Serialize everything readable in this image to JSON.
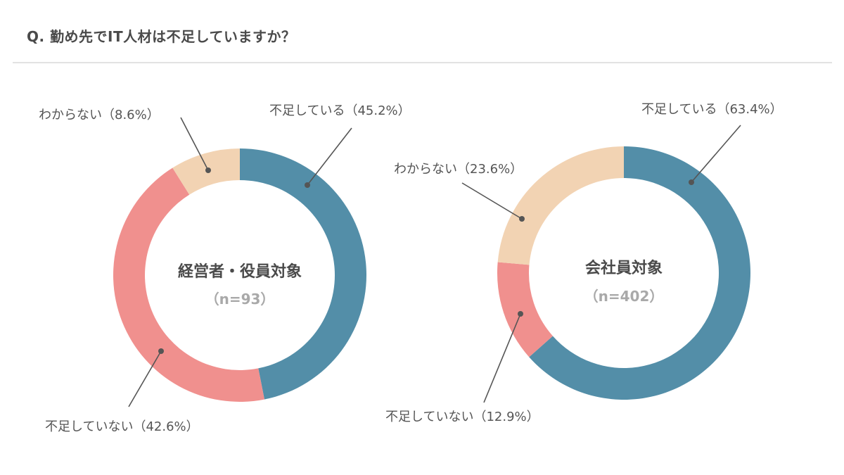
{
  "title": "Q. 勤め先でIT人材は不足していますか？",
  "colors": {
    "shortage": "#538ea8",
    "no_shortage": "#f0908e",
    "unknown": "#f2d3b3",
    "leader": "#555555"
  },
  "chart_data": [
    {
      "type": "pie",
      "subtype": "donut",
      "center_title": "経営者・役員対象",
      "center_n": "（n=93）",
      "categories": [
        "不足している",
        "不足していない",
        "わからない"
      ],
      "values": [
        45.2,
        42.6,
        8.6
      ],
      "labels": [
        "不足している（45.2%）",
        "不足していない（42.6%）",
        "わからない（8.6%）"
      ],
      "legend": "none"
    },
    {
      "type": "pie",
      "subtype": "donut",
      "center_title": "会社員対象",
      "center_n": "（n=402）",
      "categories": [
        "不足している",
        "不足していない",
        "わからない"
      ],
      "values": [
        63.4,
        12.9,
        23.6
      ],
      "labels": [
        "不足している（63.4%）",
        "不足していない（12.9%）",
        "わからない（23.6%）"
      ],
      "legend": "none"
    }
  ]
}
